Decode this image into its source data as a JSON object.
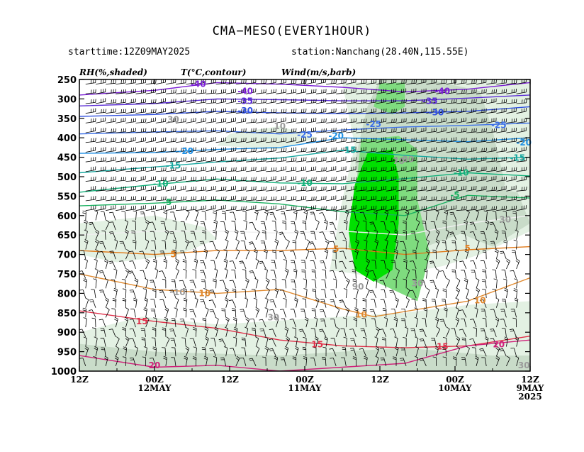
{
  "header": {
    "title": "CMA−MESO(EVERY1HOUR)",
    "starttime": "starttime:12Z09MAY2025",
    "station": "station:Nanchang(28.40N,115.55E)"
  },
  "legend": {
    "rh": "RH(%,shaded)",
    "temp": "T(°C,contour)",
    "wind": "Wind(m/s,barb)"
  },
  "chart_data": {
    "type": "time-height cross section",
    "y_axis": {
      "quantity": "pressure (hPa)",
      "range": [
        1000,
        250
      ],
      "ticks": [
        250,
        300,
        350,
        400,
        450,
        500,
        550,
        600,
        650,
        700,
        750,
        800,
        850,
        900,
        950,
        1000
      ]
    },
    "x_axis": {
      "direction": "time increases right to left",
      "range_hours": [
        0,
        72
      ],
      "ticks": [
        {
          "hour": 72,
          "line1": "12Z",
          "line2": "",
          "line3": ""
        },
        {
          "hour": 60,
          "line1": "00Z",
          "line2": "12MAY",
          "line3": ""
        },
        {
          "hour": 48,
          "line1": "12Z",
          "line2": "",
          "line3": ""
        },
        {
          "hour": 36,
          "line1": "00Z",
          "line2": "11MAY",
          "line3": ""
        },
        {
          "hour": 24,
          "line1": "12Z",
          "line2": "",
          "line3": ""
        },
        {
          "hour": 12,
          "line1": "00Z",
          "line2": "10MAY",
          "line3": ""
        },
        {
          "hour": 0,
          "line1": "12Z",
          "line2": "9MAY",
          "line3": "2025"
        }
      ]
    },
    "rh_shading": [
      {
        "level": 70,
        "color": "#e3f1e3"
      },
      {
        "level": 80,
        "color": "#c9dcc9"
      },
      {
        "level": 90,
        "color": "#7fdc7f"
      },
      {
        "level": 95,
        "color": "#00e000"
      }
    ],
    "temperature_contours": [
      {
        "value": -40,
        "color": "#7b1fd6"
      },
      {
        "value": -35,
        "color": "#5a2bd6"
      },
      {
        "value": -30,
        "color": "#2f4fe0"
      },
      {
        "value": -25,
        "color": "#3b6fe8"
      },
      {
        "value": -20,
        "color": "#1e90e6"
      },
      {
        "value": -15,
        "color": "#18a8a0"
      },
      {
        "value": -10,
        "color": "#12b07a"
      },
      {
        "value": -5,
        "color": "#19b060"
      },
      {
        "value": 0,
        "color": "#f0f0f0"
      },
      {
        "value": 5,
        "color": "#e07a1a"
      },
      {
        "value": 10,
        "color": "#e08a30"
      },
      {
        "value": 15,
        "color": "#e0304a"
      },
      {
        "value": 20,
        "color": "#d0207a"
      }
    ],
    "contour_labels": [
      {
        "text": "-40",
        "hour": 53,
        "p": 262,
        "color": "#7b1fd6"
      },
      {
        "text": "-40",
        "hour": 45.5,
        "p": 280,
        "color": "#7b1fd6"
      },
      {
        "text": "-40",
        "hour": 14,
        "p": 280,
        "color": "#7b1fd6"
      },
      {
        "text": "-35",
        "hour": 45.5,
        "p": 306,
        "color": "#5a2bd6"
      },
      {
        "text": "-35",
        "hour": 16,
        "p": 306,
        "color": "#5a2bd6"
      },
      {
        "text": "-30",
        "hour": 45.5,
        "p": 330,
        "color": "#2f4fe0"
      },
      {
        "text": "-30",
        "hour": 15,
        "p": 335,
        "color": "#2f4fe0"
      },
      {
        "text": "-25",
        "hour": 36,
        "p": 392,
        "color": "#3b6fe8"
      },
      {
        "text": "-25",
        "hour": 25,
        "p": 365,
        "color": "#3b6fe8"
      },
      {
        "text": "-25",
        "hour": 5,
        "p": 368,
        "color": "#3b6fe8"
      },
      {
        "text": "-20",
        "hour": 1,
        "p": 412,
        "color": "#1e90e6"
      },
      {
        "text": "-20",
        "hour": 31,
        "p": 395,
        "color": "#1e90e6"
      },
      {
        "text": "-20",
        "hour": 55,
        "p": 434,
        "color": "#1e90e6"
      },
      {
        "text": "-15",
        "hour": 57,
        "p": 472,
        "color": "#18a8a0"
      },
      {
        "text": "-15",
        "hour": 29,
        "p": 432,
        "color": "#18a8a0"
      },
      {
        "text": "-15",
        "hour": 2,
        "p": 452,
        "color": "#18a8a0"
      },
      {
        "text": "-10",
        "hour": 59,
        "p": 518,
        "color": "#12b07a"
      },
      {
        "text": "-10",
        "hour": 36,
        "p": 516,
        "color": "#12b07a"
      },
      {
        "text": "-10",
        "hour": 11,
        "p": 490,
        "color": "#12b07a"
      },
      {
        "text": "-5",
        "hour": 58,
        "p": 566,
        "color": "#19b060"
      },
      {
        "text": "-5",
        "hour": 12,
        "p": 547,
        "color": "#19b060"
      },
      {
        "text": "5",
        "hour": 57,
        "p": 700,
        "color": "#e07a1a"
      },
      {
        "text": "5",
        "hour": 31,
        "p": 686,
        "color": "#e07a1a"
      },
      {
        "text": "5",
        "hour": 10,
        "p": 684,
        "color": "#e07a1a"
      },
      {
        "text": "10",
        "hour": 52,
        "p": 800,
        "color": "#e08a30"
      },
      {
        "text": "10",
        "hour": 27,
        "p": 855,
        "color": "#e08a30"
      },
      {
        "text": "10",
        "hour": 8,
        "p": 818,
        "color": "#e08a30"
      },
      {
        "text": "15",
        "hour": 62,
        "p": 872,
        "color": "#e0304a"
      },
      {
        "text": "15",
        "hour": 34,
        "p": 932,
        "color": "#e0304a"
      },
      {
        "text": "15",
        "hour": 14,
        "p": 937,
        "color": "#e0304a"
      },
      {
        "text": "20",
        "hour": 5,
        "p": 932,
        "color": "#d0207a"
      },
      {
        "text": "20",
        "hour": 60,
        "p": 985,
        "color": "#d0207a"
      }
    ],
    "rh_labels": [
      {
        "text": "70",
        "hour": 21,
        "p": 460
      },
      {
        "text": "90",
        "hour": 19.5,
        "p": 455
      },
      {
        "text": "90",
        "hour": 27.5,
        "p": 783
      },
      {
        "text": "30",
        "hour": 57,
        "p": 353
      },
      {
        "text": "10",
        "hour": 40,
        "p": 370
      },
      {
        "text": "10",
        "hour": 56,
        "p": 797
      },
      {
        "text": "30",
        "hour": 1,
        "p": 985
      },
      {
        "text": "30",
        "hour": 4,
        "p": 610
      },
      {
        "text": "30",
        "hour": 41,
        "p": 862
      },
      {
        "text": "30",
        "hour": 18,
        "p": 775
      }
    ]
  }
}
